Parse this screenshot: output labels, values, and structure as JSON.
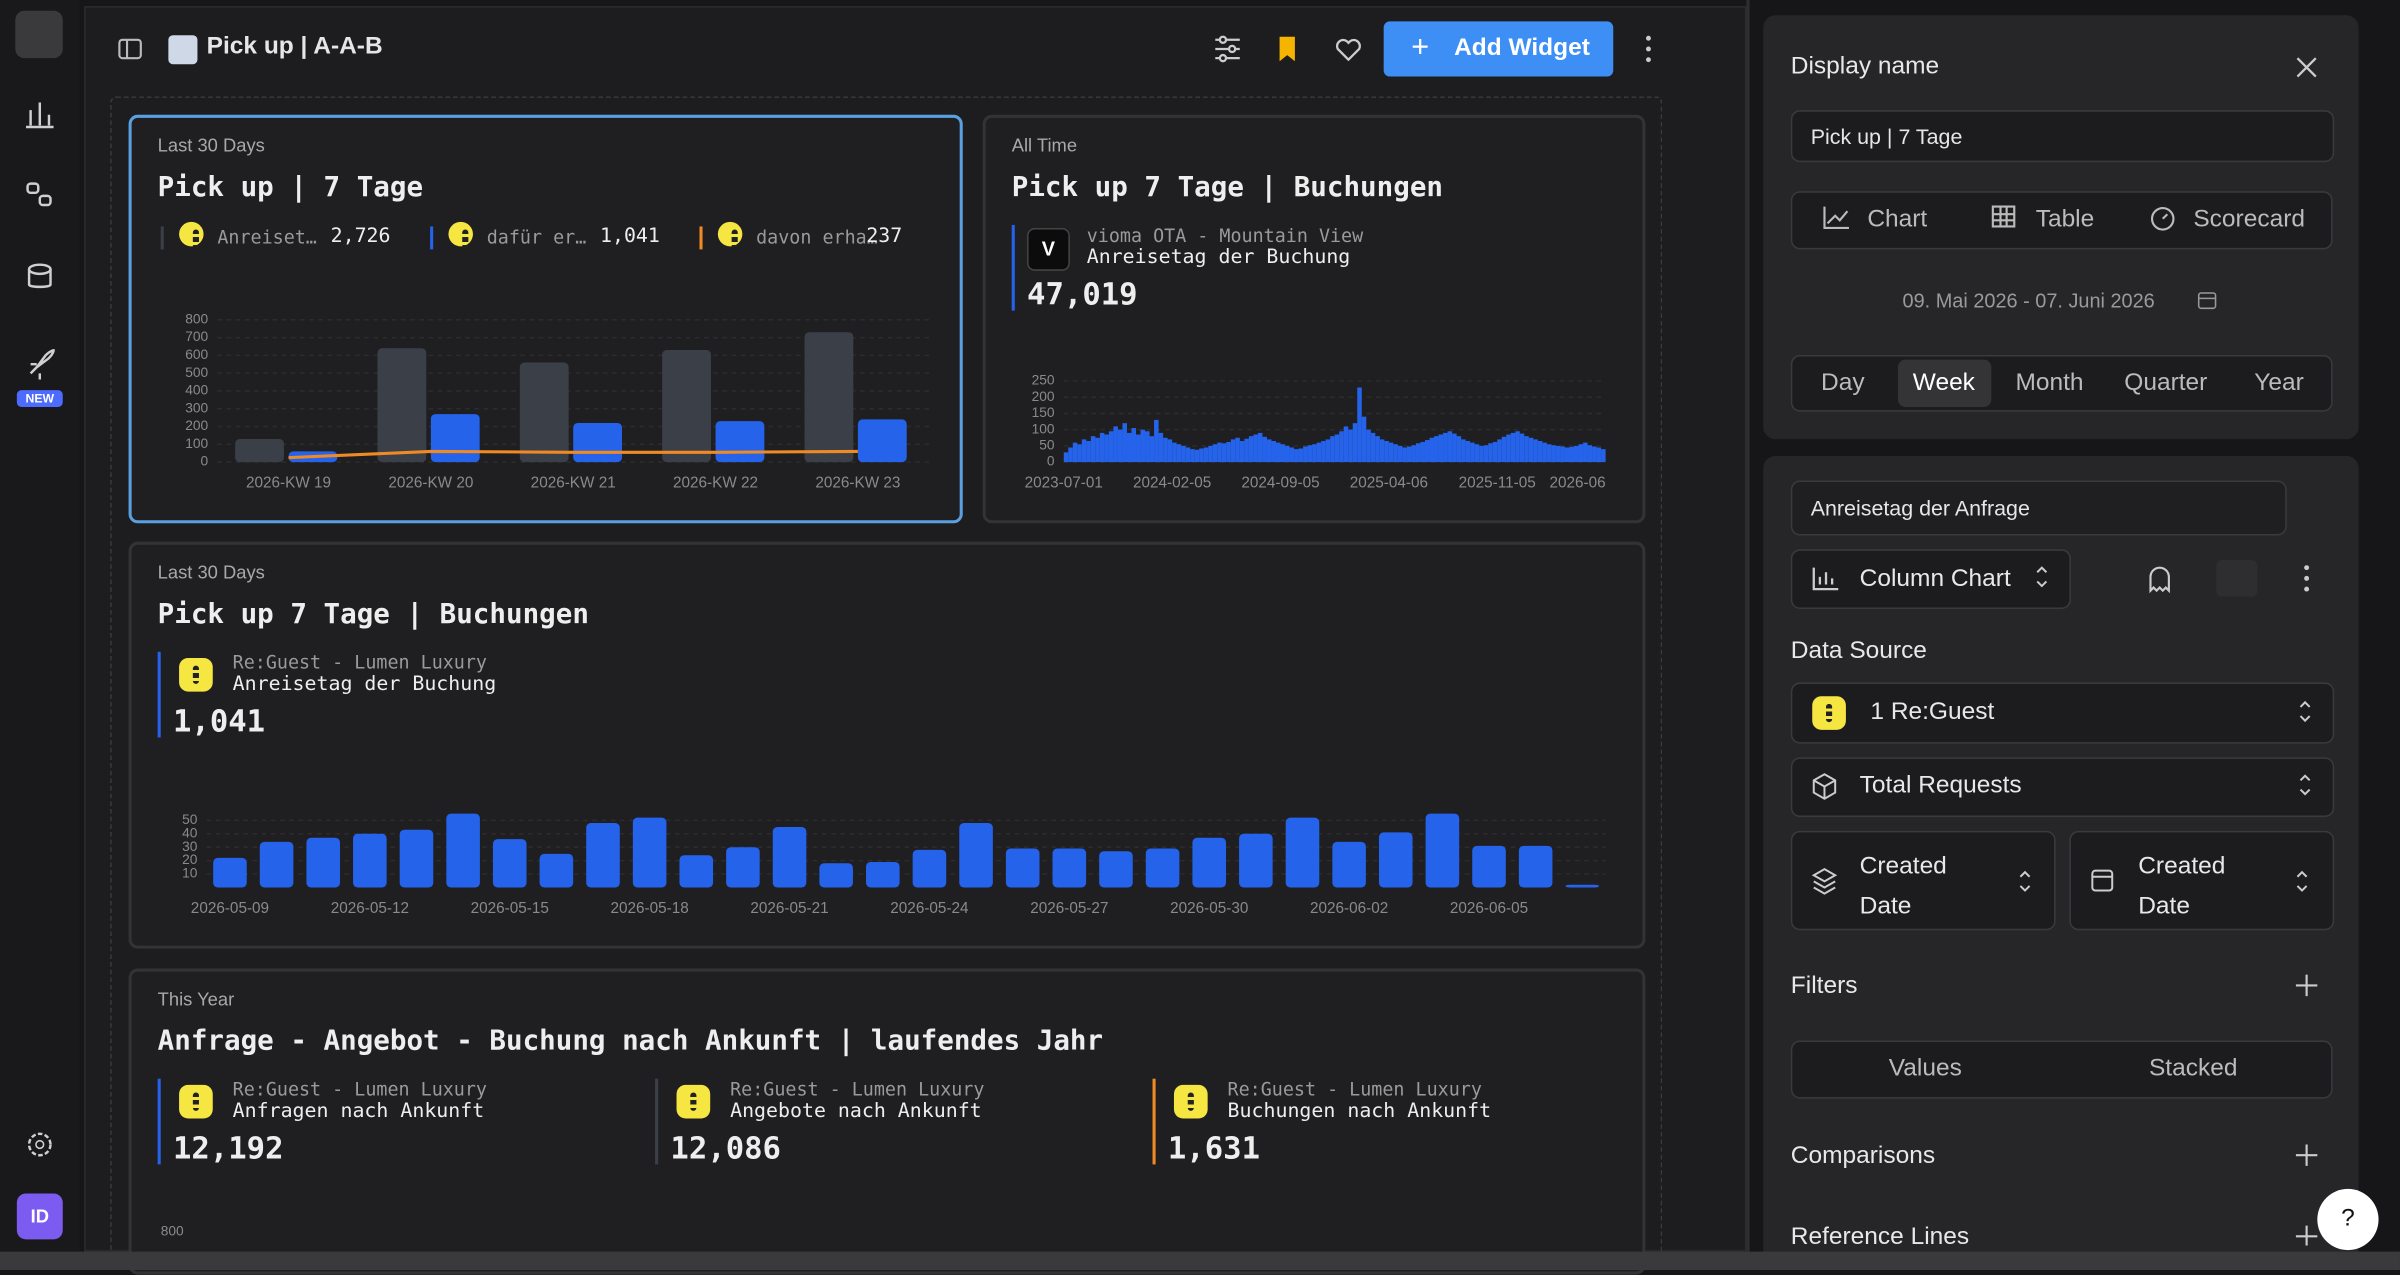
{
  "sidebar": {
    "new_badge": "NEW",
    "avatar": "ID"
  },
  "header": {
    "title": "Pick up | A-A-B",
    "add_widget": "Add Widget"
  },
  "widgets": [
    {
      "period": "Last 30 Days",
      "title": "Pick up | 7 Tage",
      "totals": [
        "2,726",
        "1,041",
        "237"
      ],
      "chart_data": {
        "type": "bar",
        "categories": [
          "2026-KW 19",
          "2026-KW 20",
          "2026-KW 21",
          "2026-KW 22",
          "2026-KW 23"
        ],
        "ylim": [
          0,
          800
        ],
        "yticks": [
          0,
          100,
          200,
          300,
          400,
          500,
          600,
          700,
          800
        ],
        "grid": true,
        "series": [
          {
            "name": "Anreiset…",
            "color": "#3b4048",
            "values": [
              130,
              640,
              560,
              630,
              730
            ]
          },
          {
            "name": "dafür er…",
            "color": "#2563eb",
            "values": [
              60,
              270,
              220,
              230,
              240
            ]
          },
          {
            "name": "davon erha…",
            "color": "#f08a24",
            "type": "line",
            "values": [
              25,
              60,
              55,
              55,
              60
            ]
          }
        ]
      }
    },
    {
      "period": "All Time",
      "title": "Pick up 7 Tage | Buchungen",
      "source": "vioma OTA - Mountain View",
      "metric": "Anreisetag der Buchung",
      "total": "47,019",
      "chart_data": {
        "type": "bar",
        "color": "#2563eb",
        "ylim": [
          0,
          250
        ],
        "yticks": [
          0,
          50,
          100,
          150,
          200,
          250
        ],
        "grid": true,
        "xtick_labels": [
          "2023-07-01",
          "2024-02-05",
          "2024-09-05",
          "2025-04-06",
          "2025-11-05",
          "2026-06"
        ],
        "values": [
          30,
          45,
          60,
          55,
          70,
          65,
          80,
          75,
          90,
          85,
          95,
          110,
          100,
          120,
          90,
          105,
          85,
          100,
          95,
          80,
          130,
          90,
          75,
          70,
          60,
          55,
          50,
          45,
          40,
          38,
          42,
          45,
          50,
          55,
          60,
          58,
          62,
          70,
          75,
          65,
          72,
          80,
          85,
          90,
          78,
          70,
          65,
          60,
          55,
          50,
          45,
          40,
          42,
          48,
          52,
          55,
          60,
          65,
          70,
          80,
          85,
          95,
          110,
          100,
          120,
          230,
          140,
          100,
          90,
          80,
          70,
          65,
          60,
          55,
          50,
          45,
          48,
          52,
          58,
          62,
          68,
          75,
          80,
          85,
          90,
          95,
          88,
          80,
          70,
          65,
          60,
          55,
          50,
          52,
          58,
          62,
          70,
          78,
          85,
          90,
          95,
          88,
          80,
          75,
          70,
          65,
          60,
          55,
          52,
          50,
          48,
          45,
          47,
          50,
          55,
          60,
          52,
          48,
          45,
          40
        ]
      }
    },
    {
      "period": "Last 30 Days",
      "title": "Pick up 7 Tage | Buchungen",
      "source": "Re:Guest - Lumen Luxury",
      "metric": "Anreisetag der Buchung",
      "total": "1,041",
      "chart_data": {
        "type": "bar",
        "color": "#2563eb",
        "ylim": [
          0,
          57
        ],
        "yticks": [
          10,
          20,
          30,
          40,
          50
        ],
        "grid": true,
        "categories": [
          "2026-05-09",
          null,
          null,
          "2026-05-12",
          null,
          null,
          "2026-05-15",
          null,
          null,
          "2026-05-18",
          null,
          null,
          "2026-05-21",
          null,
          null,
          "2026-05-24",
          null,
          null,
          "2026-05-27",
          null,
          null,
          "2026-05-30",
          null,
          null,
          "2026-06-02",
          null,
          null,
          "2026-06-05",
          null,
          null
        ],
        "values": [
          22,
          34,
          37,
          40,
          43,
          55,
          36,
          25,
          48,
          52,
          24,
          30,
          45,
          18,
          19,
          28,
          48,
          29,
          29,
          27,
          29,
          37,
          40,
          52,
          34,
          41,
          55,
          31,
          31,
          2
        ]
      }
    },
    {
      "period": "This Year",
      "title": "Anfrage - Angebot - Buchung nach Ankunft | laufendes Jahr",
      "kpis": [
        {
          "source": "Re:Guest - Lumen Luxury",
          "metric": "Anfragen nach Ankunft",
          "total": "12,192"
        },
        {
          "source": "Re:Guest - Lumen Luxury",
          "metric": "Angebote nach Ankunft",
          "total": "12,086"
        },
        {
          "source": "Re:Guest - Lumen Luxury",
          "metric": "Buchungen nach Ankunft",
          "total": "1,631"
        }
      ],
      "chart_data": {
        "type": "bar",
        "yticks": [
          800
        ]
      }
    }
  ],
  "panel": {
    "display_name_label": "Display name",
    "display_name": "Pick up | 7 Tage",
    "view_tabs": [
      "Chart",
      "Table",
      "Scorecard"
    ],
    "date_range": "09. Mai 2026 - 07. Juni 2026",
    "granularity": [
      "Day",
      "Week",
      "Month",
      "Quarter",
      "Year"
    ],
    "field": "Anreisetag der Anfrage",
    "chart_type": "Column Chart",
    "data_source_label": "Data Source",
    "data_source": "1 Re:Guest",
    "metric": "Total Requests",
    "date_fields": [
      "Created Date",
      "Created Date"
    ],
    "filters": "Filters",
    "mode_tabs": [
      "Values",
      "Stacked"
    ],
    "comparisons": "Comparisons",
    "reference_lines": "Reference Lines"
  },
  "help": "?"
}
